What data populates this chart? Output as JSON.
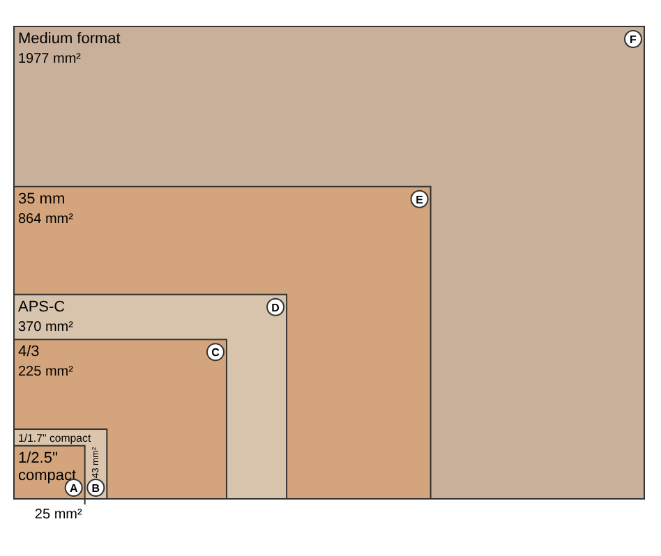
{
  "chart_data": {
    "type": "other",
    "categories": [
      "1/2.5\" compact",
      "1/1.7\" compact",
      "4/3",
      "APS-C",
      "35 mm",
      "Medium format"
    ],
    "values": [
      25,
      43,
      225,
      370,
      864,
      1977
    ],
    "value_labels": [
      "25 mm²",
      "43 mm²",
      "225 mm²",
      "370 mm²",
      "864 mm²",
      "1977 mm²"
    ],
    "colors": [
      "#d4a57c",
      "#dcc5ad",
      "#d4a57c",
      "#d8c3ad",
      "#d4a57c",
      "#c9b09a"
    ],
    "annotations": [
      "A",
      "B",
      "C",
      "D",
      "E",
      "F"
    ]
  }
}
